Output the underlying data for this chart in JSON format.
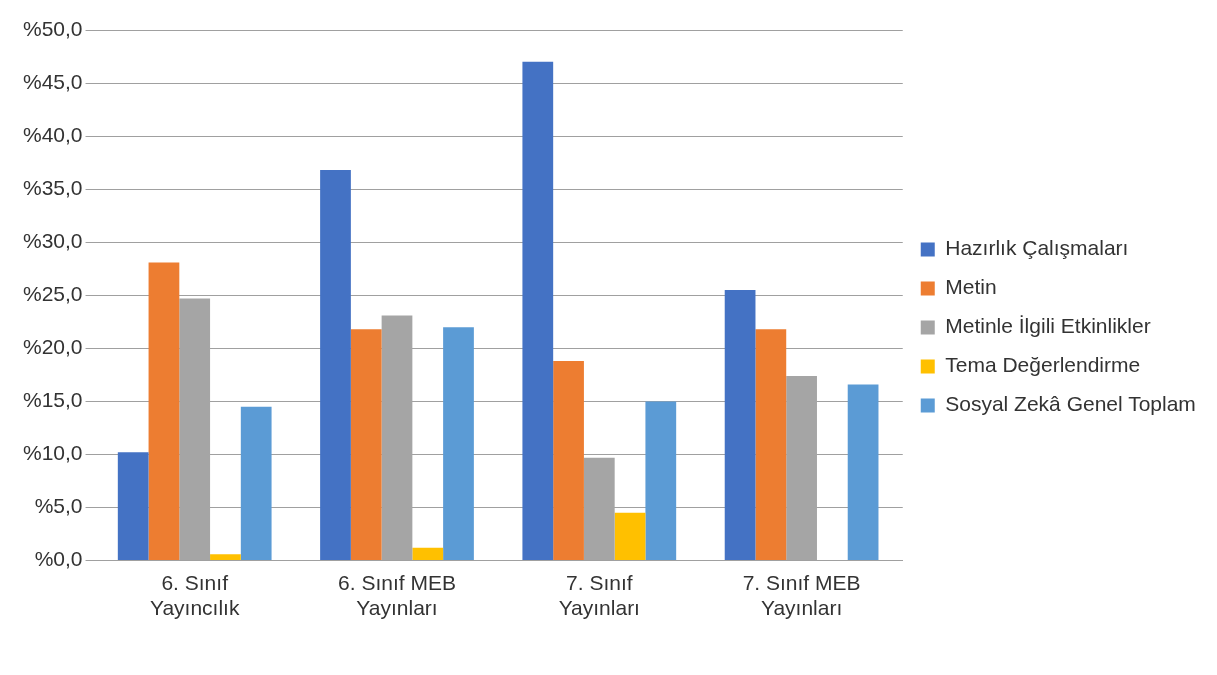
{
  "chart_data": {
    "type": "bar",
    "categories": [
      "6. Sınıf Yayıncılık",
      "6. Sınıf MEB Yayınları",
      "7. Sınıf Yayınları",
      "7. Sınıf MEB Yayınları"
    ],
    "series": [
      {
        "name": "Hazırlık Çalışmaları",
        "color": "#4472c4",
        "values": [
          10.2,
          36.8,
          47.0,
          25.5
        ]
      },
      {
        "name": "Metin",
        "color": "#ed7d31",
        "values": [
          28.1,
          21.8,
          18.8,
          21.8
        ]
      },
      {
        "name": "Metinle İlgili Etkinlikler",
        "color": "#a5a5a5",
        "values": [
          24.7,
          23.1,
          9.7,
          17.4
        ]
      },
      {
        "name": "Tema Değerlendirme",
        "color": "#ffc000",
        "values": [
          0.6,
          1.2,
          4.5,
          0
        ]
      },
      {
        "name": "Sosyal Zekâ Genel Toplam",
        "color": "#5b9bd5",
        "values": [
          14.5,
          22.0,
          15.0,
          16.6
        ]
      }
    ],
    "ylim": [
      0,
      50
    ],
    "yticks": [
      {
        "value": 0,
        "label": "%0,0"
      },
      {
        "value": 5,
        "label": "%5,0"
      },
      {
        "value": 10,
        "label": "%10,0"
      },
      {
        "value": 15,
        "label": "%15,0"
      },
      {
        "value": 20,
        "label": "%20,0"
      },
      {
        "value": 25,
        "label": "%25,0"
      },
      {
        "value": 30,
        "label": "%30,0"
      },
      {
        "value": 35,
        "label": "%35,0"
      },
      {
        "value": 40,
        "label": "%40,0"
      },
      {
        "value": 45,
        "label": "%45,0"
      },
      {
        "value": 50,
        "label": "%50,0"
      }
    ],
    "grid": "y",
    "legend": "right"
  }
}
